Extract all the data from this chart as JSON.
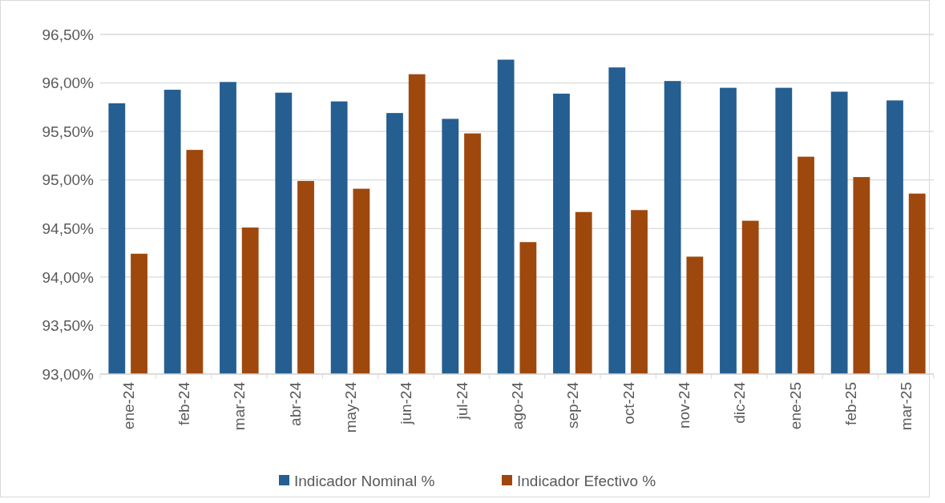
{
  "chart_data": {
    "type": "bar",
    "categories": [
      "ene-24",
      "feb-24",
      "mar-24",
      "abr-24",
      "may-24",
      "jun-24",
      "jul-24",
      "ago-24",
      "sep-24",
      "oct-24",
      "nov-24",
      "dic-24",
      "ene-25",
      "feb-25",
      "mar-25"
    ],
    "series": [
      {
        "name": "Indicador Nominal %",
        "color": "#255e91",
        "values": [
          95.79,
          95.93,
          96.01,
          95.9,
          95.81,
          95.69,
          95.63,
          96.24,
          95.89,
          96.16,
          96.02,
          95.95,
          95.95,
          95.91,
          95.82
        ]
      },
      {
        "name": "Indicador Efectivo %",
        "color": "#9e480e",
        "values": [
          94.24,
          95.31,
          94.51,
          94.99,
          94.91,
          96.09,
          95.48,
          94.36,
          94.67,
          94.69,
          94.21,
          94.58,
          95.24,
          95.03,
          94.86
        ]
      }
    ],
    "ylim": [
      93,
      96.5
    ],
    "yticks": [
      {
        "value": 93,
        "label": "93,00%"
      },
      {
        "value": 93.5,
        "label": "93,50%"
      },
      {
        "value": 94,
        "label": "94,00%"
      },
      {
        "value": 94.5,
        "label": "94,50%"
      },
      {
        "value": 95,
        "label": "95,00%"
      },
      {
        "value": 95.5,
        "label": "95,50%"
      },
      {
        "value": 96,
        "label": "96,00%"
      },
      {
        "value": 96.5,
        "label": "96,50%"
      }
    ],
    "grid": "y",
    "legend": "bottom"
  }
}
